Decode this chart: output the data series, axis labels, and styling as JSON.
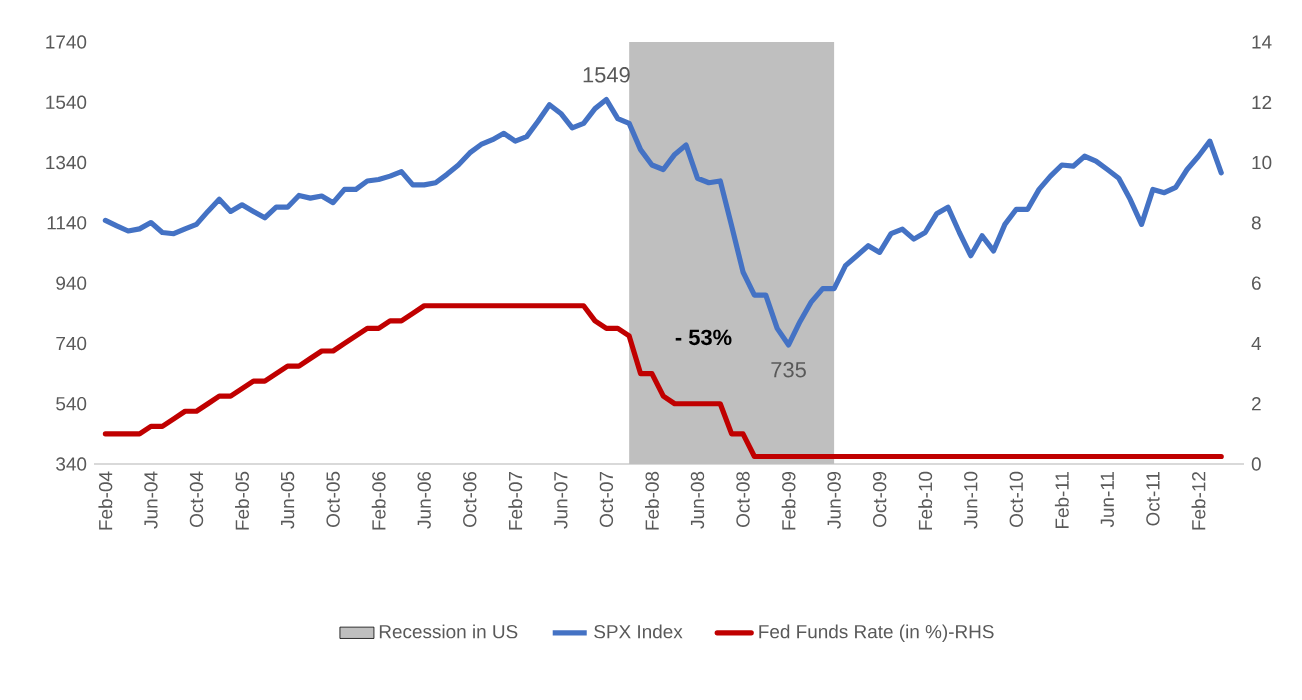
{
  "chart_data": {
    "type": "line",
    "x": [
      "2004-02",
      "2004-03",
      "2004-04",
      "2004-05",
      "2004-06",
      "2004-07",
      "2004-08",
      "2004-09",
      "2004-10",
      "2004-11",
      "2004-12",
      "2005-01",
      "2005-02",
      "2005-03",
      "2005-04",
      "2005-05",
      "2005-06",
      "2005-07",
      "2005-08",
      "2005-09",
      "2005-10",
      "2005-11",
      "2005-12",
      "2006-01",
      "2006-02",
      "2006-03",
      "2006-04",
      "2006-05",
      "2006-06",
      "2006-07",
      "2006-08",
      "2006-09",
      "2006-10",
      "2006-11",
      "2006-12",
      "2007-01",
      "2007-02",
      "2007-03",
      "2007-04",
      "2007-05",
      "2007-06",
      "2007-07",
      "2007-08",
      "2007-09",
      "2007-10",
      "2007-11",
      "2007-12",
      "2008-01",
      "2008-02",
      "2008-03",
      "2008-04",
      "2008-05",
      "2008-06",
      "2008-07",
      "2008-08",
      "2008-09",
      "2008-10",
      "2008-11",
      "2008-12",
      "2009-01",
      "2009-02",
      "2009-03",
      "2009-04",
      "2009-05",
      "2009-06",
      "2009-07",
      "2009-08",
      "2009-09",
      "2009-10",
      "2009-11",
      "2009-12",
      "2010-01",
      "2010-02",
      "2010-03",
      "2010-04",
      "2010-05",
      "2010-06",
      "2010-07",
      "2010-08",
      "2010-09",
      "2010-10",
      "2010-11",
      "2010-12",
      "2011-01",
      "2011-02",
      "2011-03",
      "2011-04",
      "2011-05",
      "2011-06",
      "2011-07",
      "2011-08",
      "2011-09",
      "2011-10",
      "2011-11",
      "2011-12",
      "2012-01",
      "2012-02",
      "2012-03",
      "2012-04"
    ],
    "series": [
      {
        "name": "SPX Index",
        "color": "#4472c4",
        "values": [
          1148,
          1130,
          1113,
          1120,
          1141,
          1108,
          1104,
          1120,
          1135,
          1178,
          1218,
          1178,
          1200,
          1178,
          1157,
          1192,
          1192,
          1231,
          1222,
          1229,
          1207,
          1251,
          1251,
          1279,
          1284,
          1295,
          1310,
          1266,
          1266,
          1273,
          1301,
          1332,
          1372,
          1400,
          1416,
          1437,
          1411,
          1426,
          1477,
          1532,
          1503,
          1455,
          1470,
          1519,
          1549,
          1486,
          1470,
          1383,
          1332,
          1317,
          1367,
          1398,
          1288,
          1273,
          1279,
          1130,
          977,
          900,
          900,
          790,
          735,
          812,
          878,
          922,
          922,
          998,
          1031,
          1064,
          1042,
          1104,
          1119,
          1086,
          1108,
          1170,
          1192,
          1108,
          1031,
          1097,
          1047,
          1135,
          1185,
          1185,
          1251,
          1295,
          1332,
          1328,
          1361,
          1345,
          1317,
          1288,
          1218,
          1135,
          1251,
          1240,
          1258,
          1317,
          1361,
          1411,
          1306
        ]
      },
      {
        "name": "Fed Funds Rate (in %)-RHS",
        "color": "#c00000",
        "axis": "y2",
        "values": [
          1.0,
          1.0,
          1.0,
          1.0,
          1.25,
          1.25,
          1.5,
          1.75,
          1.75,
          2.0,
          2.25,
          2.25,
          2.5,
          2.75,
          2.75,
          3.0,
          3.25,
          3.25,
          3.5,
          3.75,
          3.75,
          4.0,
          4.25,
          4.5,
          4.5,
          4.75,
          4.75,
          5.0,
          5.25,
          5.25,
          5.25,
          5.25,
          5.25,
          5.25,
          5.25,
          5.25,
          5.25,
          5.25,
          5.25,
          5.25,
          5.25,
          5.25,
          5.25,
          4.75,
          4.5,
          4.5,
          4.25,
          3.0,
          3.0,
          2.25,
          2.0,
          2.0,
          2.0,
          2.0,
          2.0,
          1.0,
          1.0,
          0.25,
          0.25,
          0.25,
          0.25,
          0.25,
          0.25,
          0.25,
          0.25,
          0.25,
          0.25,
          0.25,
          0.25,
          0.25,
          0.25,
          0.25,
          0.25,
          0.25,
          0.25,
          0.25,
          0.25,
          0.25,
          0.25,
          0.25,
          0.25,
          0.25,
          0.25,
          0.25,
          0.25,
          0.25,
          0.25,
          0.25,
          0.25,
          0.25,
          0.25,
          0.25,
          0.25,
          0.25,
          0.25,
          0.25,
          0.25,
          0.25,
          0.25
        ]
      }
    ],
    "xlim": [
      "2004-01",
      "2012-06"
    ],
    "xticks": [
      {
        "value": "2004-02",
        "label": "Feb-04"
      },
      {
        "value": "2004-06",
        "label": "Jun-04"
      },
      {
        "value": "2004-10",
        "label": "Oct-04"
      },
      {
        "value": "2005-02",
        "label": "Feb-05"
      },
      {
        "value": "2005-06",
        "label": "Jun-05"
      },
      {
        "value": "2005-10",
        "label": "Oct-05"
      },
      {
        "value": "2006-02",
        "label": "Feb-06"
      },
      {
        "value": "2006-06",
        "label": "Jun-06"
      },
      {
        "value": "2006-10",
        "label": "Oct-06"
      },
      {
        "value": "2007-02",
        "label": "Feb-07"
      },
      {
        "value": "2007-06",
        "label": "Jun-07"
      },
      {
        "value": "2007-10",
        "label": "Oct-07"
      },
      {
        "value": "2008-02",
        "label": "Feb-08"
      },
      {
        "value": "2008-06",
        "label": "Jun-08"
      },
      {
        "value": "2008-10",
        "label": "Oct-08"
      },
      {
        "value": "2009-02",
        "label": "Feb-09"
      },
      {
        "value": "2009-06",
        "label": "Jun-09"
      },
      {
        "value": "2009-10",
        "label": "Oct-09"
      },
      {
        "value": "2010-02",
        "label": "Feb-10"
      },
      {
        "value": "2010-06",
        "label": "Jun-10"
      },
      {
        "value": "2010-10",
        "label": "Oct-10"
      },
      {
        "value": "2011-02",
        "label": "Feb-11"
      },
      {
        "value": "2011-06",
        "label": "Jun-11"
      },
      {
        "value": "2011-10",
        "label": "Oct-11"
      },
      {
        "value": "2012-02",
        "label": "Feb-12"
      }
    ],
    "ylim": [
      340,
      1740
    ],
    "yticks": [
      340,
      540,
      740,
      940,
      1140,
      1340,
      1540,
      1740
    ],
    "y2lim": [
      0,
      14
    ],
    "y2ticks": [
      0,
      2,
      4,
      6,
      8,
      10,
      12,
      14
    ],
    "bands": [
      {
        "axis": "x",
        "from": "2007-12",
        "to": "2009-06",
        "label": "Recession in US",
        "color": "#bfbfbf"
      }
    ],
    "annotations": [
      {
        "text": "1549",
        "x": "2007-10",
        "y": 1549
      },
      {
        "text": "735",
        "x": "2009-02",
        "y": 735
      },
      "- 53%"
    ],
    "legend": "bottom",
    "grid": false,
    "marker": "none",
    "line_style": "solid"
  }
}
